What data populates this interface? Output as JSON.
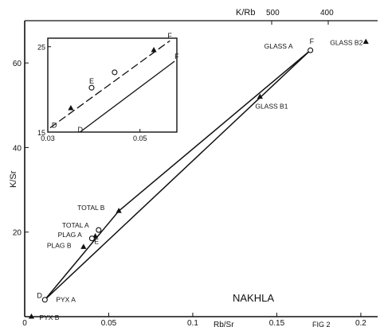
{
  "figure": {
    "top_axis_label": "K/Rb",
    "top_ticks": [
      "500",
      "400"
    ],
    "sample_label": "NAKHLA",
    "figure_number": "FIG 2",
    "colors": {
      "ink": "#111111",
      "background": "#ffffff"
    }
  },
  "chart_data": [
    {
      "type": "scatter",
      "title": "",
      "xlabel": "Rb/Sr",
      "ylabel": "K/Sr",
      "xlim": [
        0,
        0.21
      ],
      "ylim": [
        0,
        70
      ],
      "x_ticks": [
        "0",
        "0.05",
        "0.1",
        "0.15",
        "0.2"
      ],
      "y_ticks": [
        "20",
        "40",
        "60"
      ],
      "grid": false,
      "points": [
        {
          "label": "GLASS A",
          "x": 0.17,
          "y": 63,
          "marker": "circle"
        },
        {
          "label": "GLASS B2",
          "x": 0.203,
          "y": 65,
          "marker": "triangle"
        },
        {
          "label": "GLASS B1",
          "x": 0.14,
          "y": 52,
          "marker": "triangle"
        },
        {
          "label": "TOTAL B",
          "x": 0.056,
          "y": 25,
          "marker": "triangle"
        },
        {
          "label": "TOTAL A",
          "x": 0.044,
          "y": 20.5,
          "marker": "circle"
        },
        {
          "label": "PLAG A",
          "x": 0.042,
          "y": 19,
          "marker": "triangle"
        },
        {
          "label": "E",
          "x": 0.04,
          "y": 18.5,
          "marker": "circle"
        },
        {
          "label": "PLAG B",
          "x": 0.035,
          "y": 16.5,
          "marker": "triangle"
        },
        {
          "label": "PYX A",
          "x": 0.012,
          "y": 4,
          "marker": "circle"
        },
        {
          "label": "PYX B",
          "x": 0.004,
          "y": 0,
          "marker": "triangle"
        }
      ],
      "end_labels": [
        {
          "label": "D",
          "x": 0.012,
          "y": 4
        },
        {
          "label": "F",
          "x": 0.17,
          "y": 63
        }
      ],
      "lines": [
        {
          "x": [
            0.012,
            0.17
          ],
          "y": [
            4,
            63
          ]
        },
        {
          "x": [
            0.012,
            0.056,
            0.17
          ],
          "y": [
            4,
            25,
            63
          ]
        }
      ]
    },
    {
      "type": "scatter",
      "title": "",
      "xlabel": "",
      "ylabel": "",
      "xlim": [
        0.03,
        0.058
      ],
      "ylim": [
        15,
        26
      ],
      "x_ticks": [
        "0.03",
        "0.05"
      ],
      "y_ticks": [
        "15",
        "25"
      ],
      "grid": false,
      "points": [
        {
          "label": "",
          "x": 0.035,
          "y": 17.8,
          "marker": "triangle"
        },
        {
          "label": "E",
          "x": 0.0395,
          "y": 20.2,
          "marker": "circle"
        },
        {
          "label": "",
          "x": 0.0445,
          "y": 22.0,
          "marker": "circle"
        },
        {
          "label": "",
          "x": 0.053,
          "y": 24.6,
          "marker": "triangle"
        }
      ],
      "end_labels": [
        {
          "label": "D",
          "x": 0.0305,
          "y": 15.5
        },
        {
          "label": "F",
          "x": 0.0565,
          "y": 25.7
        },
        {
          "label": "D",
          "x": 0.037,
          "y": 15.0
        },
        {
          "label": "F",
          "x": 0.0575,
          "y": 23.3
        }
      ],
      "lines": [
        {
          "x": [
            0.0305,
            0.0565
          ],
          "y": [
            15.5,
            25.7
          ],
          "dashed": true
        },
        {
          "x": [
            0.037,
            0.0575
          ],
          "y": [
            15.0,
            23.3
          ],
          "dashed": false
        }
      ]
    }
  ]
}
